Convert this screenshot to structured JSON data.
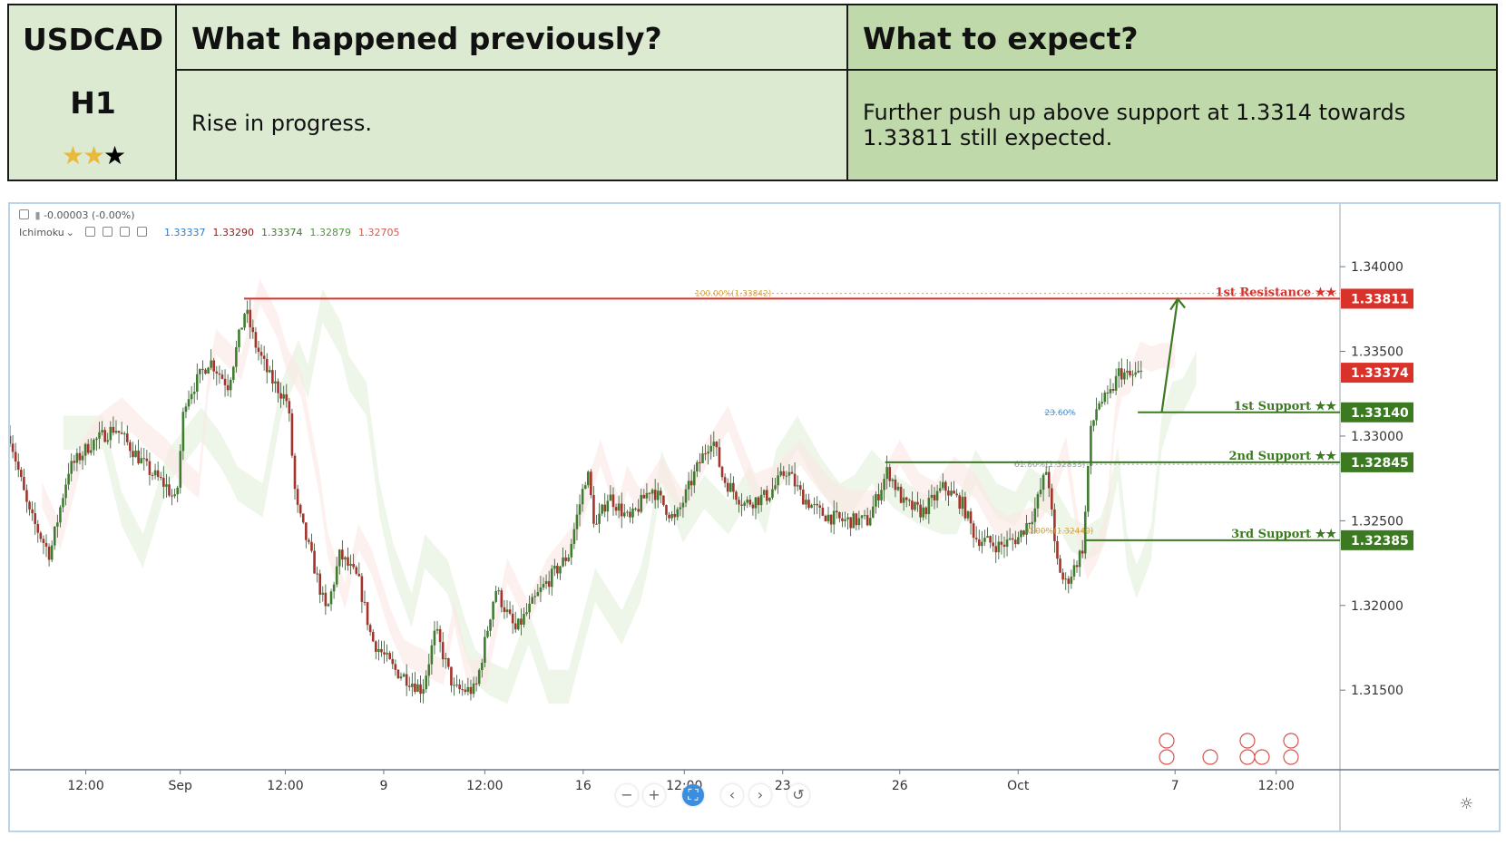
{
  "header": {
    "symbol": "USDCAD",
    "timeframe": "H1",
    "rating_filled": 2,
    "rating_total": 3,
    "prev_title": "What happened previously?",
    "prev_text": "Rise in progress.",
    "expect_title": "What to expect?",
    "expect_text": "Further push up above support at 1.3314 towards 1.33811 still expected."
  },
  "legend": {
    "change": "-0.00003 (-0.00%)",
    "indicator": "Ichimoku",
    "values": [
      {
        "text": "1.33337",
        "color": "#2e7bcf"
      },
      {
        "text": "1.33290",
        "color": "#8b1c1c"
      },
      {
        "text": "1.33374",
        "color": "#3d7a2c"
      },
      {
        "text": "1.32879",
        "color": "#4c9a3c"
      },
      {
        "text": "1.32705",
        "color": "#d25b52"
      }
    ]
  },
  "controls": [
    "−",
    "+",
    "⛶",
    "‹",
    "›",
    "↺"
  ],
  "settings_icon": "☼",
  "chart_data": {
    "type": "candlestick",
    "symbol": "USDCAD",
    "timeframe": "H1",
    "ylim": [
      1.3103,
      1.3437
    ],
    "y_ticks": [
      1.315,
      1.32,
      1.325,
      1.33,
      1.335,
      1.34
    ],
    "y_tick_labels": [
      "1.31500",
      "1.32000",
      "1.32500",
      "1.33000",
      "1.33500",
      "1.34000"
    ],
    "x_tick_labels": [
      "12:00",
      "Sep",
      "12:00",
      "9",
      "12:00",
      "16",
      "12:00",
      "23",
      "26",
      "Oct",
      "7",
      "12:00"
    ],
    "x_tick_positions": [
      0.057,
      0.128,
      0.207,
      0.281,
      0.357,
      0.431,
      0.507,
      0.581,
      0.669,
      0.758,
      0.876,
      0.952
    ],
    "price_path": [
      [
        0.0,
        1.33
      ],
      [
        0.014,
        1.3255
      ],
      [
        0.03,
        1.323
      ],
      [
        0.044,
        1.328
      ],
      [
        0.06,
        1.3295
      ],
      [
        0.079,
        1.3305
      ],
      [
        0.094,
        1.329
      ],
      [
        0.104,
        1.328
      ],
      [
        0.118,
        1.327
      ],
      [
        0.125,
        1.326
      ],
      [
        0.131,
        1.332
      ],
      [
        0.15,
        1.3345
      ],
      [
        0.164,
        1.333
      ],
      [
        0.177,
        1.3375
      ],
      [
        0.184,
        1.3355
      ],
      [
        0.195,
        1.3335
      ],
      [
        0.209,
        1.332
      ],
      [
        0.215,
        1.326
      ],
      [
        0.228,
        1.3225
      ],
      [
        0.238,
        1.3195
      ],
      [
        0.248,
        1.323
      ],
      [
        0.262,
        1.3215
      ],
      [
        0.272,
        1.318
      ],
      [
        0.289,
        1.3162
      ],
      [
        0.302,
        1.3155
      ],
      [
        0.31,
        1.315
      ],
      [
        0.32,
        1.3185
      ],
      [
        0.334,
        1.315
      ],
      [
        0.35,
        1.315
      ],
      [
        0.365,
        1.321
      ],
      [
        0.38,
        1.3185
      ],
      [
        0.4,
        1.321
      ],
      [
        0.42,
        1.323
      ],
      [
        0.434,
        1.328
      ],
      [
        0.44,
        1.3245
      ],
      [
        0.45,
        1.3265
      ],
      [
        0.466,
        1.325
      ],
      [
        0.482,
        1.327
      ],
      [
        0.5,
        1.325
      ],
      [
        0.516,
        1.328
      ],
      [
        0.528,
        1.33
      ],
      [
        0.536,
        1.3275
      ],
      [
        0.552,
        1.326
      ],
      [
        0.57,
        1.3265
      ],
      [
        0.584,
        1.328
      ],
      [
        0.595,
        1.3265
      ],
      [
        0.608,
        1.3255
      ],
      [
        0.625,
        1.325
      ],
      [
        0.645,
        1.325
      ],
      [
        0.66,
        1.328
      ],
      [
        0.672,
        1.326
      ],
      [
        0.686,
        1.3255
      ],
      [
        0.702,
        1.327
      ],
      [
        0.716,
        1.326
      ],
      [
        0.726,
        1.324
      ],
      [
        0.744,
        1.3235
      ],
      [
        0.758,
        1.324
      ],
      [
        0.77,
        1.3255
      ],
      [
        0.78,
        1.3282
      ],
      [
        0.786,
        1.323
      ],
      [
        0.793,
        1.3212
      ],
      [
        0.8,
        1.3222
      ],
      [
        0.807,
        1.3235
      ],
      [
        0.812,
        1.33
      ],
      [
        0.818,
        1.332
      ],
      [
        0.826,
        1.3322
      ],
      [
        0.834,
        1.3338
      ],
      [
        0.842,
        1.3335
      ],
      [
        0.852,
        1.3337
      ]
    ],
    "fibonacci": [
      {
        "label": "100.00%(1.33842)",
        "value": 1.33842,
        "color": "#d9a03a"
      },
      {
        "label": "23.60%",
        "value": 1.3314,
        "color": "#4a8fd0"
      },
      {
        "label": "61.80%(1.32833)",
        "value": 1.32833,
        "color": "#9aa0a6"
      },
      {
        "label": "0.00%(1.32440)",
        "value": 1.3244,
        "color": "#d9a03a"
      }
    ],
    "levels": [
      {
        "name": "1st Resistance ★★",
        "value": 1.33811,
        "label": "1.33811",
        "color": "#d8322a"
      },
      {
        "name": "1st Support ★★",
        "value": 1.3314,
        "label": "1.33140",
        "color": "#3c7a22"
      },
      {
        "name": "2nd Support ★★",
        "value": 1.32845,
        "label": "1.32845",
        "color": "#3c7a22"
      },
      {
        "name": "3rd Support ★★",
        "value": 1.32385,
        "label": "1.32385",
        "color": "#3c7a22"
      }
    ],
    "current_price": {
      "value": 1.33374,
      "label": "1.33374",
      "color": "#d8322a"
    },
    "projection_arrow": {
      "from": [
        0.866,
        1.3314
      ],
      "to": [
        0.878,
        1.3381
      ],
      "color": "#3c7a22"
    }
  }
}
